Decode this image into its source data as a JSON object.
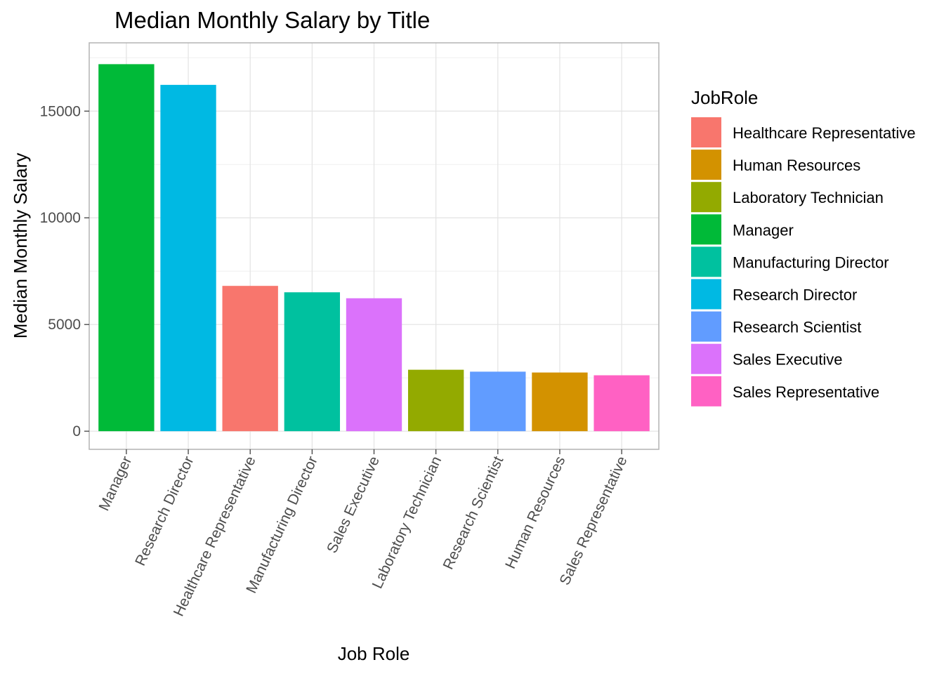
{
  "chart_data": {
    "type": "bar",
    "title": "Median Monthly Salary by Title",
    "xlabel": "Job Role",
    "ylabel": "Median Monthly Salary",
    "ylim": [
      -850,
      18200
    ],
    "yticks": [
      0,
      5000,
      10000,
      15000
    ],
    "ytick_labels": [
      "0",
      "5000",
      "10000",
      "15000"
    ],
    "grid": true,
    "legend_position": "right",
    "legend_title": "JobRole",
    "categories": [
      "Manager",
      "Research Director",
      "Healthcare Representative",
      "Manufacturing Director",
      "Sales Executive",
      "Laboratory Technician",
      "Research Scientist",
      "Human Resources",
      "Sales Representative"
    ],
    "values": [
      17200,
      16230,
      6810,
      6510,
      6230,
      2880,
      2790,
      2750,
      2620
    ],
    "bar_colors": [
      "#00BA38",
      "#00B9E3",
      "#F8766D",
      "#00C19F",
      "#DB72FB",
      "#93AA00",
      "#619CFF",
      "#D39200",
      "#FF61C3"
    ],
    "legend": [
      {
        "label": "Healthcare Representative",
        "color": "#F8766D"
      },
      {
        "label": "Human Resources",
        "color": "#D39200"
      },
      {
        "label": "Laboratory Technician",
        "color": "#93AA00"
      },
      {
        "label": "Manager",
        "color": "#00BA38"
      },
      {
        "label": "Manufacturing Director",
        "color": "#00C19F"
      },
      {
        "label": "Research Director",
        "color": "#00B9E3"
      },
      {
        "label": "Research Scientist",
        "color": "#619CFF"
      },
      {
        "label": "Sales Executive",
        "color": "#DB72FB"
      },
      {
        "label": "Sales Representative",
        "color": "#FF61C3"
      }
    ]
  }
}
